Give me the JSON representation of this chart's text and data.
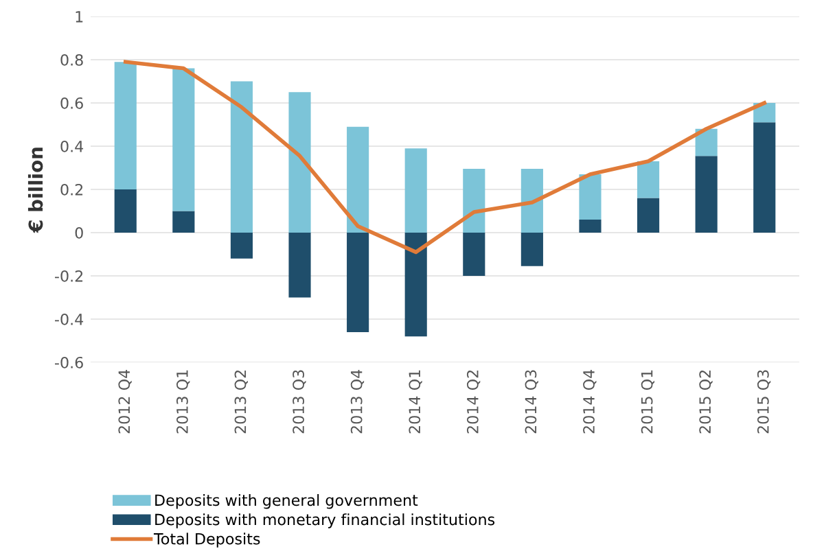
{
  "chart_data": {
    "type": "bar",
    "stacked": true,
    "ylabel": "€ billion",
    "categories": [
      "2012 Q4",
      "2013 Q1",
      "2013 Q2",
      "2013 Q3",
      "2013 Q4",
      "2014 Q1",
      "2014 Q2",
      "2014 Q3",
      "2014 Q4",
      "2015 Q1",
      "2015 Q2",
      "2015 Q3"
    ],
    "series": [
      {
        "name": "Deposits with monetary financial institutions",
        "color": "#1f4e6b",
        "values": [
          0.2,
          0.1,
          -0.12,
          -0.3,
          -0.46,
          -0.48,
          -0.2,
          -0.155,
          0.06,
          0.16,
          0.355,
          0.51
        ]
      },
      {
        "name": "Deposits with general government",
        "color": "#7cc4d8",
        "values": [
          0.59,
          0.66,
          0.7,
          0.65,
          0.49,
          0.39,
          0.295,
          0.295,
          0.21,
          0.17,
          0.125,
          0.09
        ]
      },
      {
        "name": "Total Deposits",
        "type": "line",
        "color": "#e07b39",
        "values": [
          0.79,
          0.76,
          0.58,
          0.355,
          0.03,
          -0.09,
          0.095,
          0.14,
          0.27,
          0.33,
          0.48,
          0.6
        ]
      }
    ],
    "ylim": [
      -0.6,
      1
    ],
    "yticks": [
      -0.6,
      -0.4,
      -0.2,
      0,
      0.2,
      0.4,
      0.6,
      0.8,
      1
    ],
    "grid": "y",
    "legend": "bottom",
    "marker": "none",
    "line_style": "solid"
  }
}
